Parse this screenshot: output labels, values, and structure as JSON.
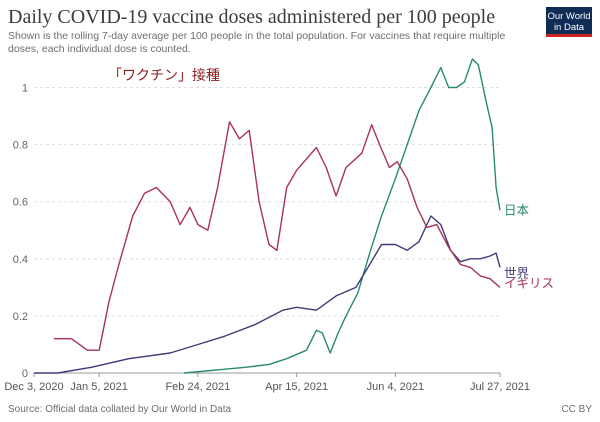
{
  "header": {
    "title": "Daily COVID-19 vaccine doses administered per 100 people",
    "subtitle": "Shown is the rolling 7-day average per 100 people in the total population. For vaccines that require multiple doses, each individual dose is counted.",
    "logo_line1": "Our World",
    "logo_line2": "in Data"
  },
  "footer": {
    "source": "Source: Official data collated by Our World in Data",
    "license": "CC BY"
  },
  "annotation": "「ワクチン」接種",
  "colors": {
    "japan": "#2a8a6e",
    "world": "#3e3c7a",
    "uk": "#a8325c",
    "annotation": "#8b1c1c",
    "grid": "#dddddd",
    "axis": "#999999"
  },
  "chart_data": {
    "type": "line",
    "title": "Daily COVID-19 vaccine doses administered per 100 people",
    "xlabel": "",
    "ylabel": "",
    "xlim": [
      "2020-12-03",
      "2021-07-27"
    ],
    "ylim": [
      0,
      1.1
    ],
    "x_ticks": [
      "Dec 3, 2020",
      "Jan 5, 2021",
      "Feb 24, 2021",
      "Apr 15, 2021",
      "Jun 4, 2021",
      "Jul 27, 2021"
    ],
    "y_ticks": [
      "0",
      "0.2",
      "0.4",
      "0.6",
      "0.8",
      "1"
    ],
    "grid": true,
    "series": [
      {
        "name": "日本",
        "key": "japan",
        "points": [
          [
            "2021-02-17",
            0.0
          ],
          [
            "2021-03-05",
            0.01
          ],
          [
            "2021-03-20",
            0.02
          ],
          [
            "2021-04-01",
            0.03
          ],
          [
            "2021-04-10",
            0.05
          ],
          [
            "2021-04-20",
            0.08
          ],
          [
            "2021-04-25",
            0.15
          ],
          [
            "2021-04-28",
            0.14
          ],
          [
            "2021-05-02",
            0.07
          ],
          [
            "2021-05-06",
            0.14
          ],
          [
            "2021-05-10",
            0.2
          ],
          [
            "2021-05-16",
            0.28
          ],
          [
            "2021-05-22",
            0.42
          ],
          [
            "2021-05-28",
            0.55
          ],
          [
            "2021-06-04",
            0.68
          ],
          [
            "2021-06-10",
            0.8
          ],
          [
            "2021-06-16",
            0.92
          ],
          [
            "2021-06-22",
            1.0
          ],
          [
            "2021-06-27",
            1.07
          ],
          [
            "2021-07-01",
            1.0
          ],
          [
            "2021-07-05",
            1.0
          ],
          [
            "2021-07-09",
            1.02
          ],
          [
            "2021-07-13",
            1.1
          ],
          [
            "2021-07-16",
            1.08
          ],
          [
            "2021-07-20",
            0.95
          ],
          [
            "2021-07-23",
            0.86
          ],
          [
            "2021-07-25",
            0.65
          ],
          [
            "2021-07-27",
            0.57
          ]
        ]
      },
      {
        "name": "世界",
        "key": "world",
        "points": [
          [
            "2020-12-03",
            0.0
          ],
          [
            "2020-12-15",
            0.0
          ],
          [
            "2021-01-01",
            0.02
          ],
          [
            "2021-01-20",
            0.05
          ],
          [
            "2021-02-10",
            0.07
          ],
          [
            "2021-02-24",
            0.1
          ],
          [
            "2021-03-10",
            0.13
          ],
          [
            "2021-03-25",
            0.17
          ],
          [
            "2021-04-08",
            0.22
          ],
          [
            "2021-04-15",
            0.23
          ],
          [
            "2021-04-25",
            0.22
          ],
          [
            "2021-05-05",
            0.27
          ],
          [
            "2021-05-15",
            0.3
          ],
          [
            "2021-05-22",
            0.38
          ],
          [
            "2021-05-28",
            0.45
          ],
          [
            "2021-06-04",
            0.45
          ],
          [
            "2021-06-10",
            0.43
          ],
          [
            "2021-06-16",
            0.46
          ],
          [
            "2021-06-22",
            0.55
          ],
          [
            "2021-06-27",
            0.52
          ],
          [
            "2021-07-02",
            0.43
          ],
          [
            "2021-07-07",
            0.39
          ],
          [
            "2021-07-12",
            0.4
          ],
          [
            "2021-07-17",
            0.4
          ],
          [
            "2021-07-22",
            0.41
          ],
          [
            "2021-07-25",
            0.42
          ],
          [
            "2021-07-27",
            0.37
          ]
        ]
      },
      {
        "name": "イギリス",
        "key": "uk",
        "points": [
          [
            "2020-12-13",
            0.12
          ],
          [
            "2020-12-22",
            0.12
          ],
          [
            "2020-12-30",
            0.08
          ],
          [
            "2021-01-05",
            0.08
          ],
          [
            "2021-01-10",
            0.25
          ],
          [
            "2021-01-15",
            0.38
          ],
          [
            "2021-01-22",
            0.55
          ],
          [
            "2021-01-28",
            0.63
          ],
          [
            "2021-02-03",
            0.65
          ],
          [
            "2021-02-10",
            0.6
          ],
          [
            "2021-02-15",
            0.52
          ],
          [
            "2021-02-20",
            0.58
          ],
          [
            "2021-02-24",
            0.52
          ],
          [
            "2021-03-01",
            0.5
          ],
          [
            "2021-03-06",
            0.65
          ],
          [
            "2021-03-12",
            0.88
          ],
          [
            "2021-03-17",
            0.82
          ],
          [
            "2021-03-22",
            0.85
          ],
          [
            "2021-03-27",
            0.6
          ],
          [
            "2021-04-01",
            0.45
          ],
          [
            "2021-04-05",
            0.43
          ],
          [
            "2021-04-10",
            0.65
          ],
          [
            "2021-04-15",
            0.71
          ],
          [
            "2021-04-20",
            0.75
          ],
          [
            "2021-04-25",
            0.79
          ],
          [
            "2021-04-30",
            0.72
          ],
          [
            "2021-05-05",
            0.62
          ],
          [
            "2021-05-10",
            0.72
          ],
          [
            "2021-05-18",
            0.77
          ],
          [
            "2021-05-23",
            0.87
          ],
          [
            "2021-05-27",
            0.8
          ],
          [
            "2021-06-01",
            0.72
          ],
          [
            "2021-06-05",
            0.74
          ],
          [
            "2021-06-10",
            0.68
          ],
          [
            "2021-06-15",
            0.58
          ],
          [
            "2021-06-20",
            0.51
          ],
          [
            "2021-06-25",
            0.52
          ],
          [
            "2021-07-01",
            0.44
          ],
          [
            "2021-07-07",
            0.38
          ],
          [
            "2021-07-12",
            0.37
          ],
          [
            "2021-07-17",
            0.34
          ],
          [
            "2021-07-22",
            0.33
          ],
          [
            "2021-07-27",
            0.3
          ]
        ]
      }
    ]
  }
}
